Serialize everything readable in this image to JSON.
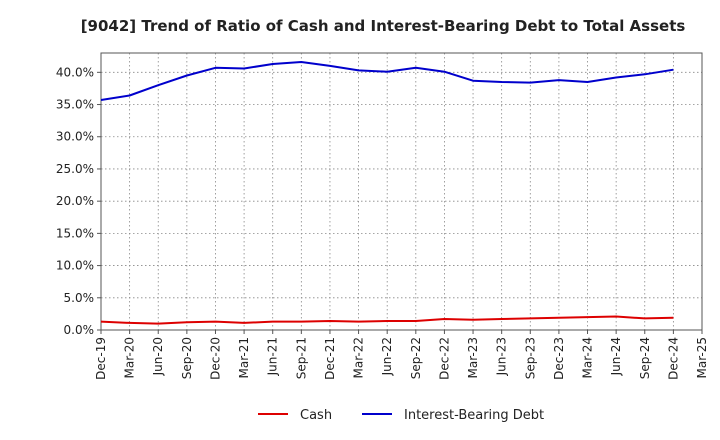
{
  "chart_data": {
    "type": "line",
    "title": "[9042]  Trend of Ratio of Cash and Interest-Bearing Debt to Total Assets",
    "xlabel": "",
    "ylabel": "",
    "categories": [
      "Dec-19",
      "Mar-20",
      "Jun-20",
      "Sep-20",
      "Dec-20",
      "Mar-21",
      "Jun-21",
      "Sep-21",
      "Dec-21",
      "Mar-22",
      "Jun-22",
      "Sep-22",
      "Dec-22",
      "Mar-23",
      "Jun-23",
      "Sep-23",
      "Dec-23",
      "Mar-24",
      "Jun-24",
      "Sep-24",
      "Dec-24",
      "Mar-25"
    ],
    "ylim": [
      0,
      0.43
    ],
    "yticks": [
      0,
      0.05,
      0.1,
      0.15,
      0.2,
      0.25,
      0.3,
      0.35,
      0.4
    ],
    "ytick_labels": [
      "0.0%",
      "5.0%",
      "10.0%",
      "15.0%",
      "20.0%",
      "25.0%",
      "30.0%",
      "35.0%",
      "40.0%"
    ],
    "grid": true,
    "legend_position": "bottom",
    "series": [
      {
        "name": "Cash",
        "color": "#dd0000",
        "values": [
          0.013,
          0.011,
          0.01,
          0.012,
          0.013,
          0.011,
          0.013,
          0.013,
          0.014,
          0.013,
          0.014,
          0.014,
          0.017,
          0.016,
          0.017,
          0.018,
          0.019,
          0.02,
          0.021,
          0.018,
          0.019,
          null
        ]
      },
      {
        "name": "Interest-Bearing Debt",
        "color": "#0000cc",
        "values": [
          0.357,
          0.364,
          0.38,
          0.395,
          0.407,
          0.406,
          0.413,
          0.416,
          0.41,
          0.403,
          0.401,
          0.407,
          0.401,
          0.387,
          0.385,
          0.384,
          0.388,
          0.385,
          0.392,
          0.397,
          0.404,
          null
        ]
      }
    ]
  }
}
